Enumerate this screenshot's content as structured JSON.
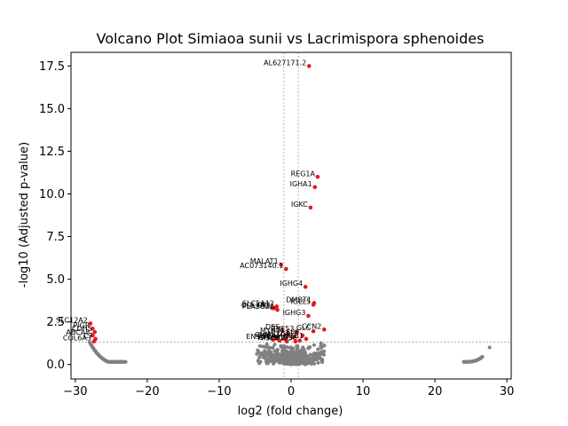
{
  "chart_data": {
    "type": "scatter",
    "title": "Volcano Plot Simiaoa sunii vs Lacrimispora sphenoides",
    "xlabel": "log2 (fold change)",
    "ylabel": "-log10 (Adjusted p-value)",
    "xlim": [
      -30.6,
      30.6
    ],
    "ylim": [
      -0.85,
      18.3
    ],
    "xticks": [
      -30,
      -20,
      -10,
      0,
      10,
      20,
      30
    ],
    "yticks": [
      0.0,
      2.5,
      5.0,
      7.5,
      10.0,
      12.5,
      15.0,
      17.5
    ],
    "grid": false,
    "threshold_lines": {
      "vertical": [
        -1,
        1
      ],
      "horizontal": 1.3
    },
    "colors": {
      "significant": "#e31a1c",
      "non_significant": "#808080",
      "threshold": "#808080"
    },
    "significant_points": [
      {
        "label": "AL627171.2",
        "x": 2.5,
        "y": 17.5
      },
      {
        "label": "REG1A",
        "x": 3.7,
        "y": 11.0
      },
      {
        "label": "IGHA1",
        "x": 3.3,
        "y": 10.4
      },
      {
        "label": "IGKC",
        "x": 2.7,
        "y": 9.2
      },
      {
        "label": "MALAT1",
        "x": -1.4,
        "y": 5.85
      },
      {
        "label": "AC073140.1",
        "x": -0.7,
        "y": 5.6
      },
      {
        "label": "IGHG4",
        "x": 2.0,
        "y": 4.55
      },
      {
        "label": "DMBT1",
        "x": 3.2,
        "y": 3.6
      },
      {
        "label": "IGLL5",
        "x": 3.1,
        "y": 3.5
      },
      {
        "label": "SLC5A12",
        "x": -2.0,
        "y": 3.4
      },
      {
        "label": "COL4A1",
        "x": -2.6,
        "y": 3.3
      },
      {
        "label": "CR1",
        "x": -2.4,
        "y": 3.3
      },
      {
        "label": "PLA2G2A",
        "x": -1.9,
        "y": 3.2
      },
      {
        "label": "IGHG3",
        "x": 2.4,
        "y": 2.85
      },
      {
        "label": "SLC12A2",
        "x": -27.9,
        "y": 2.4
      },
      {
        "label": "CCN2",
        "x": 4.6,
        "y": 2.05
      },
      {
        "label": "GLC",
        "x": 3.1,
        "y": 1.95
      },
      {
        "label": "DES",
        "x": -1.2,
        "y": 2.0
      },
      {
        "label": "ZNF53",
        "x": 0.8,
        "y": 1.9
      },
      {
        "label": "MYH11",
        "x": -0.5,
        "y": 1.8
      },
      {
        "label": "EHF",
        "x": 1.6,
        "y": 1.7
      },
      {
        "label": "ACTG2",
        "x": 0.3,
        "y": 1.6
      },
      {
        "label": "CNN1",
        "x": -1.9,
        "y": 1.55
      },
      {
        "label": "EPCAM",
        "x": -0.8,
        "y": 1.5
      },
      {
        "label": "CD38",
        "x": 1.2,
        "y": 1.4
      },
      {
        "label": "RGS5",
        "x": 0.6,
        "y": 1.35
      },
      {
        "label": "MZB1",
        "x": 2.1,
        "y": 1.5
      },
      {
        "label": "TPSAB1",
        "x": -0.6,
        "y": 1.35
      },
      {
        "label": "ENSG1",
        "x": -2.5,
        "y": 1.45
      },
      {
        "label": "CPA3",
        "x": -1.6,
        "y": 1.4
      },
      {
        "label": "PIGR",
        "x": -27.6,
        "y": 2.1
      },
      {
        "label": "CDH5",
        "x": -27.3,
        "y": 1.9
      },
      {
        "label": "ABCA8",
        "x": -27.6,
        "y": 1.7
      },
      {
        "label": "C7",
        "x": -27.2,
        "y": 1.5
      },
      {
        "label": "COL6A3",
        "x": -27.4,
        "y": 1.35
      }
    ]
  }
}
